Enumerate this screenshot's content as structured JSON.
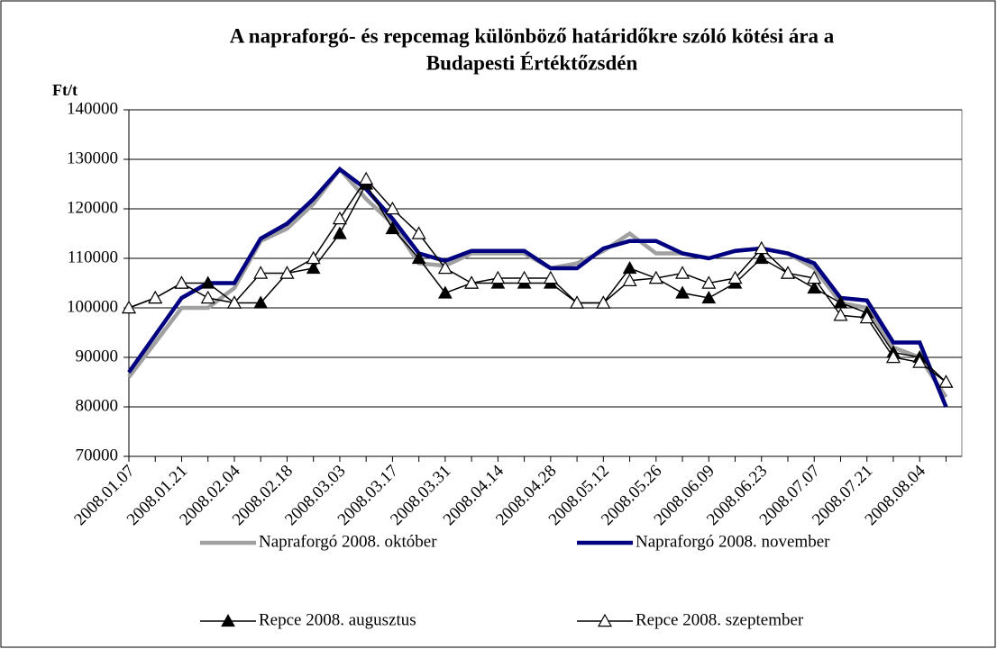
{
  "chart_data": {
    "type": "line",
    "title": [
      "A napraforgó- és repcemag különböző határidőkre szóló kötési ára a",
      "Budapesti Értéktőzsdén"
    ],
    "y_label": "Ft/t",
    "categories": [
      "2008.01.07",
      null,
      "2008.01.21",
      null,
      "2008.02.04",
      null,
      "2008.02.18",
      null,
      "2008.03.03",
      null,
      "2008.03.17",
      null,
      "2008.03.31",
      null,
      "2008.04.14",
      null,
      "2008.04.28",
      null,
      "2008.05.12",
      null,
      "2008.05.26",
      null,
      "2008.06.09",
      null,
      "2008.06.23",
      null,
      "2008.07.07",
      null,
      "2008.07.21",
      null,
      "2008.08.04",
      null
    ],
    "series": [
      {
        "name": "Napraforgó 2008. október",
        "color": "#a0a0a0",
        "marker": "none",
        "values": [
          86000,
          93000,
          100000,
          100000,
          104000,
          113500,
          116000,
          121000,
          128000,
          122000,
          117000,
          109000,
          108500,
          111000,
          111000,
          111000,
          108000,
          109000,
          111500,
          115000,
          111000,
          111000,
          110000,
          111500,
          112000,
          111000,
          108000,
          101000,
          100000,
          92000,
          90000,
          82000
        ]
      },
      {
        "name": "Napraforgó 2008. november",
        "color": "#000080",
        "marker": "none",
        "values": [
          87000,
          94500,
          102000,
          105000,
          105000,
          114000,
          117000,
          122000,
          128000,
          124000,
          118000,
          111000,
          109500,
          111500,
          111500,
          111500,
          108000,
          108000,
          112000,
          113500,
          113500,
          111000,
          110000,
          111500,
          112000,
          111000,
          109000,
          102000,
          101500,
          93000,
          93000,
          80000
        ]
      },
      {
        "name": "Repce 2008. augusztus",
        "color": "#000000",
        "marker": "filled-triangle",
        "values": [
          100000,
          102000,
          105000,
          105000,
          101000,
          101000,
          107000,
          108000,
          115000,
          125000,
          116000,
          110000,
          103000,
          105000,
          105000,
          105000,
          105000,
          101000,
          101000,
          108000,
          106000,
          103000,
          102000,
          105000,
          110000,
          107000,
          104000,
          101000,
          99000,
          91000,
          90000,
          85000
        ]
      },
      {
        "name": "Repce 2008. szeptember",
        "color": "#000000",
        "marker": "open-triangle",
        "values": [
          100000,
          102000,
          105000,
          102000,
          101000,
          107000,
          107000,
          110000,
          118000,
          126000,
          120000,
          115000,
          108000,
          105000,
          106000,
          106000,
          106000,
          101000,
          101000,
          105500,
          106000,
          107000,
          105000,
          106000,
          112000,
          107000,
          106000,
          98500,
          98000,
          90000,
          89000,
          85000
        ]
      }
    ],
    "ylim": [
      70000,
      140000
    ],
    "yticks": [
      70000,
      80000,
      90000,
      100000,
      110000,
      120000,
      130000,
      140000
    ],
    "grid": true,
    "legend": "bottom"
  }
}
